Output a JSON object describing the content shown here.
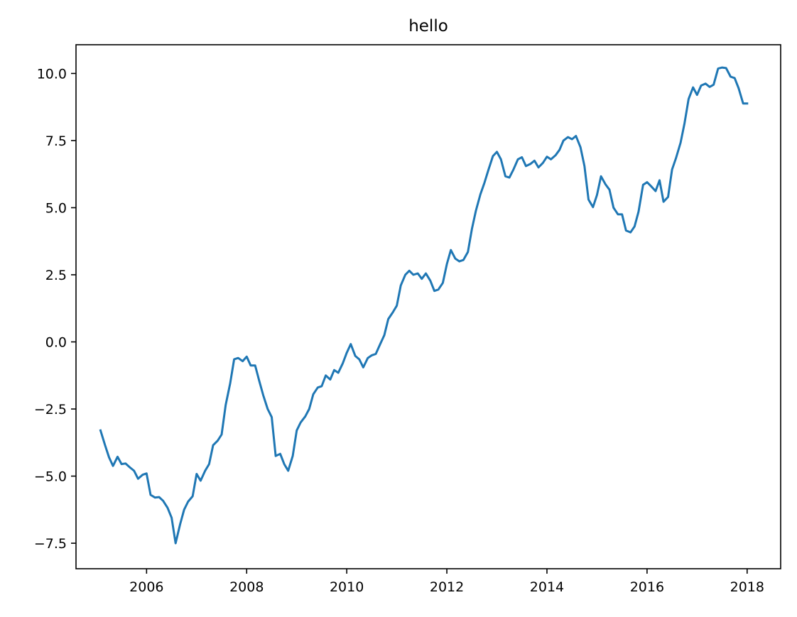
{
  "chart_data": {
    "type": "line",
    "title": "hello",
    "xlabel": "",
    "ylabel": "",
    "xlim": [
      2004.59,
      2018.67
    ],
    "ylim": [
      -8.45,
      11.07
    ],
    "xticks": [
      2006,
      2008,
      2010,
      2012,
      2014,
      2016,
      2018
    ],
    "xtick_labels": [
      "2006",
      "2008",
      "2010",
      "2012",
      "2014",
      "2016",
      "2018"
    ],
    "yticks": [
      -7.5,
      -5.0,
      -2.5,
      0.0,
      2.5,
      5.0,
      7.5,
      10.0
    ],
    "ytick_labels": [
      "−7.5",
      "−5.0",
      "−2.5",
      "0.0",
      "2.5",
      "5.0",
      "7.5",
      "10.0"
    ],
    "grid": false,
    "line_color": "#1f77b4",
    "series": [
      {
        "x": [
          2005.08,
          2005.17,
          2005.25,
          2005.33,
          2005.42,
          2005.5,
          2005.58,
          2005.67,
          2005.75,
          2005.83,
          2005.92,
          2006.0,
          2006.08,
          2006.17,
          2006.25,
          2006.33,
          2006.42,
          2006.5,
          2006.58,
          2006.67,
          2006.75,
          2006.83,
          2006.92,
          2007.0,
          2007.08,
          2007.17,
          2007.25,
          2007.33,
          2007.42,
          2007.5,
          2007.58,
          2007.67,
          2007.75,
          2007.83,
          2007.92,
          2008.0,
          2008.08,
          2008.17,
          2008.25,
          2008.33,
          2008.42,
          2008.5,
          2008.58,
          2008.67,
          2008.75,
          2008.83,
          2008.92,
          2009.0,
          2009.08,
          2009.17,
          2009.25,
          2009.33,
          2009.42,
          2009.5,
          2009.58,
          2009.67,
          2009.75,
          2009.83,
          2009.92,
          2010.0,
          2010.08,
          2010.17,
          2010.25,
          2010.33,
          2010.42,
          2010.5,
          2010.58,
          2010.67,
          2010.75,
          2010.83,
          2010.92,
          2011.0,
          2011.08,
          2011.17,
          2011.25,
          2011.33,
          2011.42,
          2011.5,
          2011.58,
          2011.67,
          2011.75,
          2011.83,
          2011.92,
          2012.0,
          2012.08,
          2012.17,
          2012.25,
          2012.33,
          2012.42,
          2012.5,
          2012.58,
          2012.67,
          2012.75,
          2012.83,
          2012.92,
          2013.0,
          2013.08,
          2013.17,
          2013.25,
          2013.33,
          2013.42,
          2013.5,
          2013.58,
          2013.67,
          2013.75,
          2013.83,
          2013.92,
          2014.0,
          2014.08,
          2014.17,
          2014.25,
          2014.33,
          2014.42,
          2014.5,
          2014.58,
          2014.67,
          2014.75,
          2014.83,
          2014.92,
          2015.0,
          2015.08,
          2015.17,
          2015.25,
          2015.33,
          2015.42,
          2015.5,
          2015.58,
          2015.67,
          2015.75,
          2015.83,
          2015.92,
          2016.0,
          2016.08,
          2016.17,
          2016.25,
          2016.33,
          2016.42,
          2016.5,
          2016.58,
          2016.67,
          2016.75,
          2016.83,
          2016.92,
          2017.0,
          2017.08,
          2017.17,
          2017.25,
          2017.33,
          2017.42,
          2017.5,
          2017.58,
          2017.67,
          2017.75,
          2017.83,
          2017.92,
          2018.0
        ],
        "values": [
          -3.3,
          -3.85,
          -4.3,
          -4.62,
          -4.28,
          -4.55,
          -4.53,
          -4.68,
          -4.8,
          -5.1,
          -4.95,
          -4.9,
          -5.7,
          -5.8,
          -5.78,
          -5.92,
          -6.18,
          -6.55,
          -7.5,
          -6.8,
          -6.25,
          -5.95,
          -5.75,
          -4.92,
          -5.17,
          -4.8,
          -4.55,
          -3.85,
          -3.68,
          -3.45,
          -2.35,
          -1.55,
          -0.65,
          -0.6,
          -0.72,
          -0.55,
          -0.88,
          -0.88,
          -1.45,
          -1.98,
          -2.5,
          -2.8,
          -4.25,
          -4.17,
          -4.55,
          -4.8,
          -4.25,
          -3.3,
          -3.0,
          -2.78,
          -2.5,
          -1.95,
          -1.7,
          -1.65,
          -1.25,
          -1.4,
          -1.05,
          -1.15,
          -0.8,
          -0.4,
          -0.08,
          -0.52,
          -0.65,
          -0.95,
          -0.6,
          -0.5,
          -0.45,
          -0.07,
          0.25,
          0.85,
          1.1,
          1.35,
          2.1,
          2.5,
          2.65,
          2.5,
          2.55,
          2.35,
          2.55,
          2.28,
          1.9,
          1.95,
          2.2,
          2.9,
          3.42,
          3.1,
          3.0,
          3.05,
          3.35,
          4.2,
          4.88,
          5.5,
          5.92,
          6.4,
          6.92,
          7.08,
          6.8,
          6.17,
          6.12,
          6.42,
          6.8,
          6.88,
          6.55,
          6.63,
          6.75,
          6.5,
          6.67,
          6.9,
          6.8,
          6.95,
          7.15,
          7.5,
          7.63,
          7.55,
          7.67,
          7.25,
          6.55,
          5.3,
          5.02,
          5.47,
          6.17,
          5.87,
          5.67,
          5.0,
          4.75,
          4.75,
          4.15,
          4.08,
          4.3,
          4.85,
          5.85,
          5.95,
          5.8,
          5.62,
          6.02,
          5.22,
          5.4,
          6.42,
          6.85,
          7.42,
          8.15,
          9.05,
          9.48,
          9.2,
          9.55,
          9.62,
          9.5,
          9.58,
          10.18,
          10.22,
          10.2,
          9.88,
          9.83,
          9.45,
          8.88,
          8.88
        ]
      }
    ]
  }
}
